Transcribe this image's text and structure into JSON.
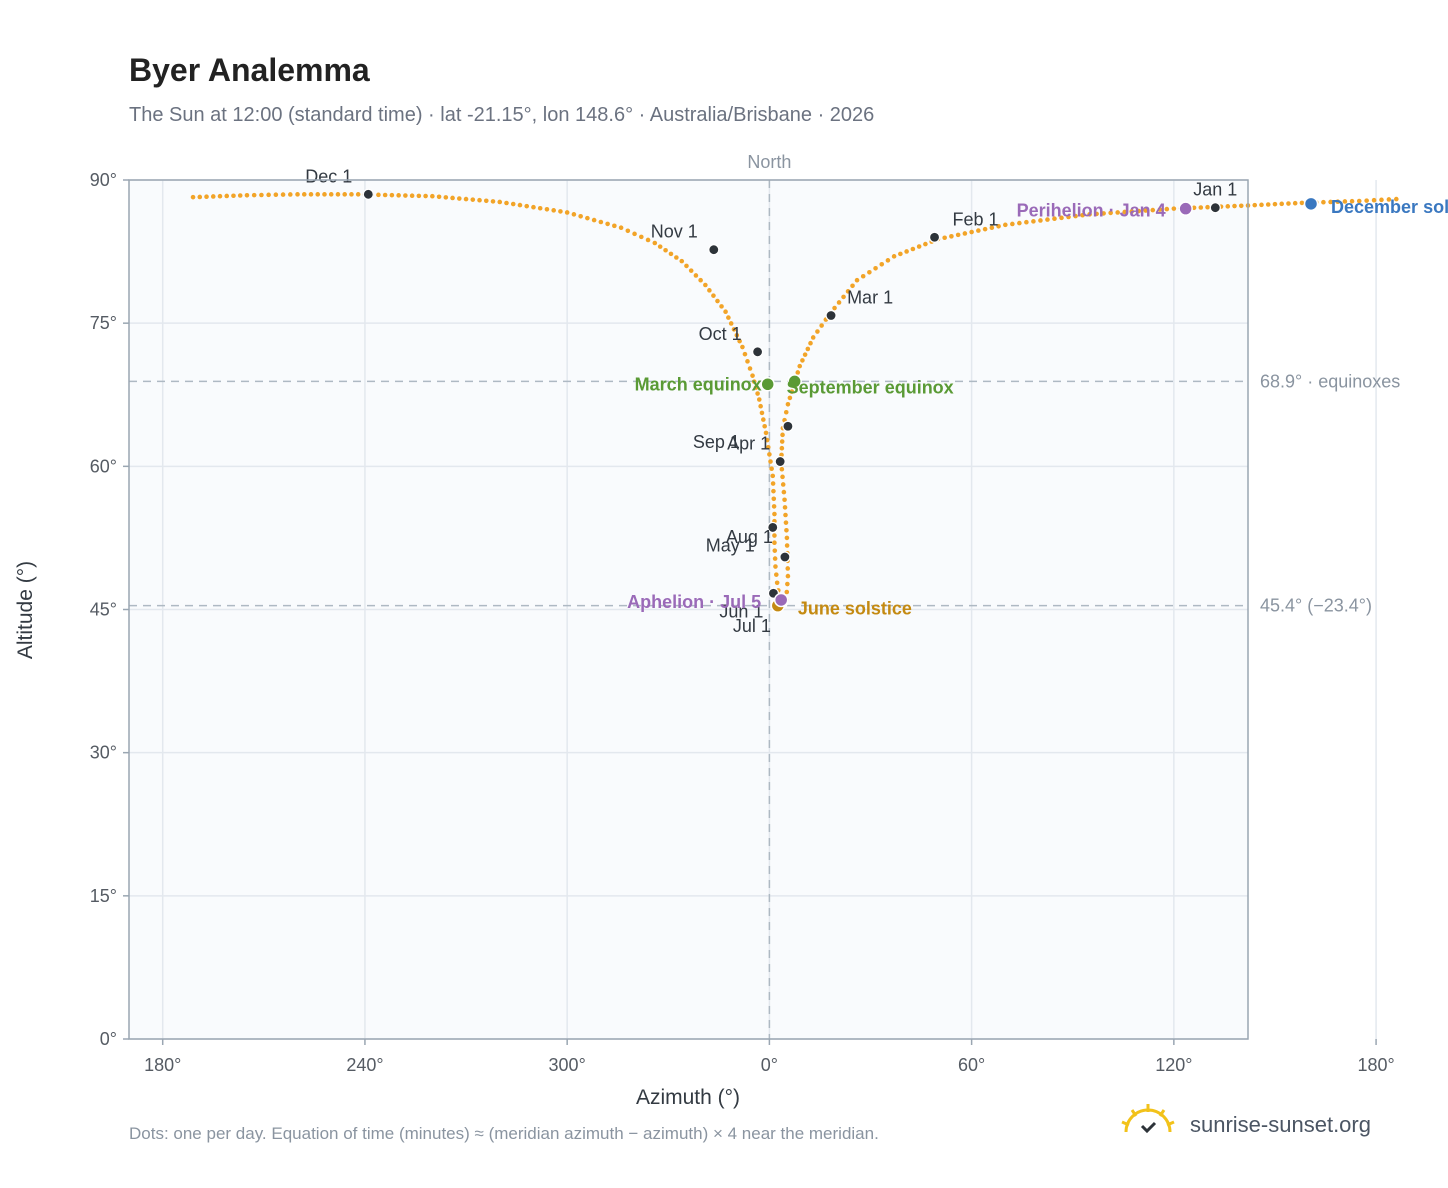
{
  "header": {
    "title": "Byer Analemma",
    "subtitle": "The Sun at 12:00 (standard time) · lat -21.15°, lon 148.6° · Australia/Brisbane · 2026"
  },
  "footer": {
    "note": "Dots: one per day. Equation of time (minutes) ≈ (meridian azimuth − azimuth) × 4 near the meridian.",
    "brand": "sunrise-sunset.org"
  },
  "colors": {
    "path": "#f2a428",
    "month_dot": "#2d3339",
    "equinox": "#5a9a35",
    "solstice_june": "#c48a12",
    "solstice_dec": "#3a78c0",
    "apsis": "#9a6ab8",
    "reference_line": "#aeb9c3",
    "plot_bg": "#f9fbfd"
  },
  "chart_data": {
    "type": "scatter",
    "title": "Byer Analemma",
    "xlabel": "Azimuth (°)",
    "ylabel": "Altitude (°)",
    "north_label": "North",
    "xlim": [
      170,
      227
    ],
    "ylim": [
      0,
      90
    ],
    "x_ticks": [
      {
        "value": 180,
        "label": "180°"
      },
      {
        "value": 240,
        "label": "240°"
      },
      {
        "value": 300,
        "label": "300°"
      },
      {
        "value": 360,
        "label": "0°"
      },
      {
        "value": 420,
        "label": "60°"
      },
      {
        "value": 480,
        "label": "120°"
      },
      {
        "value": 540,
        "label": "180°"
      }
    ],
    "y_ticks": [
      0,
      15,
      30,
      45,
      60,
      75,
      90
    ],
    "y_tick_labels": [
      "0°",
      "15°",
      "30°",
      "45°",
      "60°",
      "75°",
      "90°"
    ],
    "reference_lines": [
      {
        "y": 68.9,
        "label": "68.9° · equinoxes"
      },
      {
        "y": 45.4,
        "label": "45.4° (−23.4°)"
      }
    ],
    "path": [
      [
        189,
        88.2
      ],
      [
        205,
        88.4
      ],
      [
        220,
        88.5
      ],
      [
        238,
        88.5
      ],
      [
        260,
        88.3
      ],
      [
        280,
        87.7
      ],
      [
        300,
        86.6
      ],
      [
        316,
        85.0
      ],
      [
        326,
        83.4
      ],
      [
        334,
        81.5
      ],
      [
        341,
        79.0
      ],
      [
        347,
        76.2
      ],
      [
        352,
        72.5
      ],
      [
        355,
        69.5
      ],
      [
        357,
        67.0
      ],
      [
        359,
        63.5
      ],
      [
        361,
        59.0
      ],
      [
        361.5,
        55.0
      ],
      [
        361.5,
        52.0
      ],
      [
        361.8,
        49.5
      ],
      [
        362.3,
        47.8
      ],
      [
        363,
        46.2
      ],
      [
        364,
        45.4
      ],
      [
        365,
        46.0
      ],
      [
        365.5,
        48.5
      ],
      [
        365.2,
        52.5
      ],
      [
        364.5,
        56.5
      ],
      [
        363.5,
        60.5
      ],
      [
        364,
        64.0
      ],
      [
        365.5,
        66.5
      ],
      [
        369,
        70.5
      ],
      [
        373,
        73.5
      ],
      [
        378,
        76.0
      ],
      [
        386,
        79.5
      ],
      [
        397,
        82.0
      ],
      [
        410,
        83.8
      ],
      [
        430,
        85.3
      ],
      [
        455,
        86.4
      ],
      [
        480,
        87.0
      ],
      [
        500,
        87.3
      ],
      [
        518,
        87.6
      ],
      [
        535,
        87.8
      ],
      [
        546,
        88.0
      ]
    ],
    "month_markers": [
      {
        "label": "Jan 1",
        "az": 492.3,
        "alt": 87.1
      },
      {
        "label": "Feb 1",
        "az": 409.0,
        "alt": 84.0
      },
      {
        "label": "Mar 1",
        "az": 378.3,
        "alt": 75.8
      },
      {
        "label": "Apr 1",
        "az": 363.2,
        "alt": 60.5
      },
      {
        "label": "May 1",
        "az": 361.0,
        "alt": 53.6
      },
      {
        "label": "Jun 1",
        "az": 361.2,
        "alt": 46.7
      },
      {
        "label": "Jul 1",
        "az": 364.0,
        "alt": 45.8
      },
      {
        "label": "Aug 1",
        "az": 364.6,
        "alt": 50.5
      },
      {
        "label": "Sep 1",
        "az": 365.5,
        "alt": 64.2
      },
      {
        "label": "Oct 1",
        "az": 356.5,
        "alt": 72.0
      },
      {
        "label": "Nov 1",
        "az": 343.5,
        "alt": 82.7
      },
      {
        "label": "Dec 1",
        "az": 241.0,
        "alt": 88.5
      }
    ],
    "events": [
      {
        "label": "March equinox",
        "az": 359.5,
        "alt": 68.6,
        "kind": "equinox"
      },
      {
        "label": "September equinox",
        "az": 367.5,
        "alt": 68.9,
        "kind": "equinox"
      },
      {
        "label": "June solstice",
        "az": 362.5,
        "alt": 45.4,
        "kind": "solstice_june"
      },
      {
        "label": "December solstice",
        "az": 520.7,
        "alt": 87.5,
        "kind": "solstice_dec"
      },
      {
        "label": "Perihelion · Jan 4",
        "az": 483.5,
        "alt": 87.0,
        "kind": "apsis"
      },
      {
        "label": "Aphelion · Jul 5",
        "az": 363.5,
        "alt": 46.0,
        "kind": "apsis"
      }
    ]
  }
}
